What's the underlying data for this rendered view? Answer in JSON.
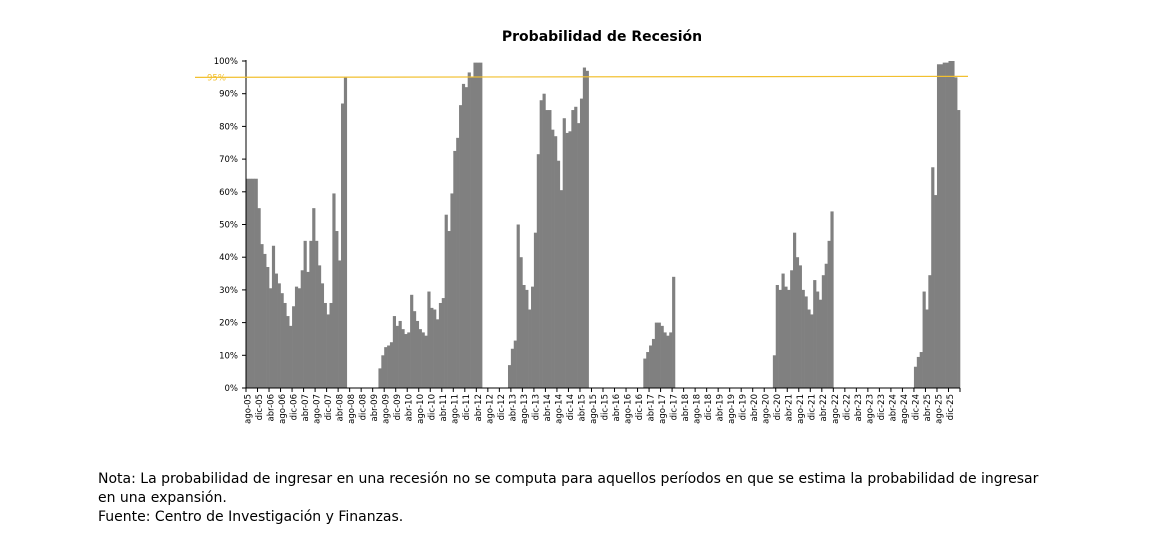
{
  "chart_data": {
    "type": "bar",
    "title": "Probabilidad de Recesión",
    "xlabel": "",
    "ylabel": "",
    "ylim": [
      0,
      100
    ],
    "y_ticks": [
      "0%",
      "10%",
      "20%",
      "30%",
      "40%",
      "50%",
      "60%",
      "70%",
      "80%",
      "90%",
      "100%"
    ],
    "grid": false,
    "bar_color": "#808080",
    "threshold": {
      "value": 95,
      "label": "95%",
      "color": "#F2C030"
    },
    "tick_every_n_categories": 4,
    "categories": [
      "ago-05",
      "sep-05",
      "oct-05",
      "nov-05",
      "dic-05",
      "ene-06",
      "feb-06",
      "mar-06",
      "abr-06",
      "may-06",
      "jun-06",
      "jul-06",
      "ago-06",
      "sep-06",
      "oct-06",
      "nov-06",
      "dic-06",
      "ene-07",
      "feb-07",
      "mar-07",
      "abr-07",
      "may-07",
      "jun-07",
      "jul-07",
      "ago-07",
      "sep-07",
      "oct-07",
      "nov-07",
      "dic-07",
      "ene-08",
      "feb-08",
      "mar-08",
      "abr-08",
      "may-08",
      "jun-08",
      "jul-08",
      "ago-08",
      "sep-08",
      "oct-08",
      "nov-08",
      "dic-08",
      "ene-09",
      "feb-09",
      "mar-09",
      "abr-09",
      "may-09",
      "jun-09",
      "jul-09",
      "ago-09",
      "sep-09",
      "oct-09",
      "nov-09",
      "dic-09",
      "ene-10",
      "feb-10",
      "mar-10",
      "abr-10",
      "may-10",
      "jun-10",
      "jul-10",
      "ago-10",
      "sep-10",
      "oct-10",
      "nov-10",
      "dic-10",
      "ene-11",
      "feb-11",
      "mar-11",
      "abr-11",
      "may-11",
      "jun-11",
      "jul-11",
      "ago-11",
      "sep-11",
      "oct-11",
      "nov-11",
      "dic-11",
      "ene-12",
      "feb-12",
      "mar-12",
      "abr-12",
      "may-12",
      "jun-12",
      "jul-12",
      "ago-12",
      "sep-12",
      "oct-12",
      "nov-12",
      "dic-12",
      "ene-13",
      "feb-13",
      "mar-13",
      "abr-13",
      "may-13",
      "jun-13",
      "jul-13",
      "ago-13",
      "sep-13",
      "oct-13",
      "nov-13",
      "dic-13",
      "ene-14",
      "feb-14",
      "mar-14",
      "abr-14",
      "may-14",
      "jun-14",
      "jul-14",
      "ago-14",
      "sep-14",
      "oct-14",
      "nov-14",
      "dic-14",
      "ene-15",
      "feb-15",
      "mar-15",
      "abr-15",
      "may-15",
      "jun-15",
      "jul-15",
      "ago-15",
      "sep-15",
      "oct-15",
      "nov-15",
      "dic-15",
      "ene-16",
      "feb-16",
      "mar-16",
      "abr-16",
      "may-16",
      "jun-16",
      "jul-16",
      "ago-16",
      "sep-16",
      "oct-16",
      "nov-16",
      "dic-16",
      "ene-17",
      "feb-17",
      "mar-17",
      "abr-17",
      "may-17",
      "jun-17",
      "jul-17",
      "ago-17",
      "sep-17",
      "oct-17",
      "nov-17",
      "dic-17",
      "ene-18",
      "feb-18",
      "mar-18",
      "abr-18",
      "may-18",
      "jun-18",
      "jul-18",
      "ago-18",
      "sep-18",
      "oct-18",
      "nov-18",
      "dic-18",
      "ene-19",
      "feb-19",
      "mar-19",
      "abr-19",
      "may-19",
      "jun-19",
      "jul-19",
      "ago-19",
      "sep-19",
      "oct-19",
      "nov-19",
      "dic-19",
      "ene-20",
      "feb-20",
      "mar-20",
      "abr-20",
      "may-20",
      "jun-20",
      "jul-20",
      "ago-20",
      "sep-20",
      "oct-20",
      "nov-20",
      "dic-20",
      "ene-21",
      "feb-21",
      "mar-21",
      "abr-21",
      "may-21",
      "jun-21",
      "jul-21",
      "ago-21",
      "sep-21",
      "oct-21",
      "nov-21",
      "dic-21",
      "ene-22",
      "feb-22",
      "mar-22",
      "abr-22",
      "may-22",
      "jun-22",
      "jul-22",
      "ago-22",
      "sep-22",
      "oct-22",
      "nov-22",
      "dic-22",
      "ene-23",
      "feb-23",
      "mar-23",
      "abr-23",
      "may-23",
      "jun-23",
      "jul-23",
      "ago-23",
      "sep-23",
      "oct-23",
      "nov-23",
      "dic-23",
      "ene-24",
      "feb-24",
      "mar-24",
      "abr-24",
      "may-24",
      "jun-24",
      "jul-24",
      "ago-24",
      "sep-24",
      "oct-24",
      "nov-24",
      "dic-24",
      "ene-25",
      "feb-25",
      "mar-25",
      "abr-25",
      "may-25",
      "jun-25",
      "jul-25",
      "ago-25",
      "sep-25",
      "oct-25",
      "nov-25",
      "dic-25",
      "ene-26",
      "feb-26",
      "mar-26"
    ],
    "values": [
      64,
      64,
      64,
      64,
      55,
      44,
      41,
      37,
      30.5,
      43.5,
      35,
      32,
      29,
      26,
      22,
      19,
      25,
      31,
      30.5,
      36,
      45,
      35.5,
      45,
      55,
      45,
      37.5,
      32,
      26,
      22.5,
      26,
      59.5,
      48,
      39,
      87,
      95,
      null,
      null,
      null,
      null,
      null,
      null,
      null,
      null,
      null,
      null,
      null,
      6,
      10,
      12.5,
      13,
      14,
      22,
      19,
      20.5,
      18,
      16.5,
      17,
      28.5,
      23.5,
      20.5,
      18,
      17,
      16,
      29.5,
      24.5,
      24,
      21,
      26,
      27.5,
      53,
      48,
      59.5,
      72.5,
      76.5,
      86.5,
      93,
      92,
      96.5,
      95,
      99.5,
      99.5,
      99.5,
      null,
      null,
      null,
      null,
      null,
      null,
      null,
      null,
      null,
      7,
      12,
      14.5,
      50,
      40,
      31.5,
      30,
      24,
      31,
      47.5,
      71.5,
      88,
      90,
      85,
      85,
      79,
      77,
      69.5,
      60.5,
      82.5,
      78,
      78.5,
      85,
      86,
      81,
      88.5,
      98,
      97,
      null,
      null,
      null,
      null,
      null,
      null,
      null,
      null,
      null,
      null,
      null,
      null,
      null,
      null,
      null,
      null,
      null,
      null,
      null,
      9,
      11,
      13,
      15,
      20,
      20,
      19,
      17,
      16,
      17,
      34,
      null,
      null,
      null,
      null,
      null,
      null,
      null,
      null,
      null,
      null,
      null,
      null,
      null,
      null,
      null,
      null,
      null,
      null,
      null,
      null,
      null,
      null,
      null,
      null,
      null,
      null,
      null,
      null,
      null,
      null,
      null,
      null,
      null,
      null,
      10,
      31.5,
      30,
      35,
      31,
      30,
      36,
      47.5,
      40,
      37.5,
      30,
      28,
      24,
      22.5,
      33,
      29.5,
      27,
      34.5,
      38,
      45,
      54,
      null,
      null,
      null,
      null,
      null,
      null,
      null,
      null,
      null,
      null,
      null,
      null,
      null,
      null,
      null,
      null,
      null,
      null,
      null,
      null,
      null,
      null,
      null,
      null,
      null,
      null,
      null,
      null,
      6.5,
      9.5,
      11,
      29.5,
      24,
      34.5,
      67.5,
      59,
      99,
      99,
      99.5,
      99.5,
      100,
      100,
      95,
      85
    ]
  },
  "notes": {
    "line1": "Nota: La probabilidad de ingresar en una recesión no se computa para aquellos períodos en que se estima la probabilidad de ingresar",
    "line2": "en una expansión.",
    "source": "Fuente: Centro de Investigación y Finanzas."
  }
}
